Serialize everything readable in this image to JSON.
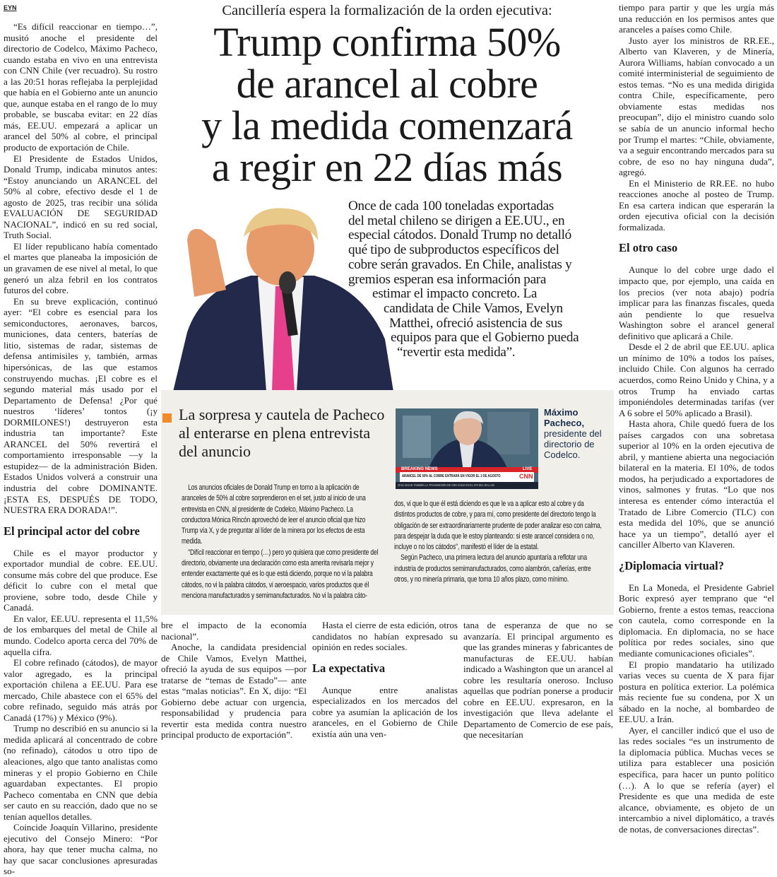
{
  "section_tag": "EYN",
  "kicker": "Cancillería espera la formalización de la orden ejecutiva:",
  "headline": [
    "Trump confirma 50%",
    "de arancel al cobre",
    "y la medida comenzará",
    "a regir en 22 días más"
  ],
  "deck": [
    "Once de cada 100 toneladas exportadas",
    "del metal chileno se dirigen a EE.UU., en",
    "especial cátodos. Donald Trump no detalló",
    "qué tipo de subproductos específicos del",
    "cobre serán gravados. En Chile, analistas y",
    "gremios esperan esa información para",
    "estimar el impacto concreto. La",
    "candidata de Chile Vamos, Evelyn",
    "Matthei, ofreció asistencia de sus",
    "equipos para que el Gobierno pueda",
    "“revertir esta medida”."
  ],
  "left_column": [
    {
      "t": "p",
      "text": "“Es difícil reaccionar en tiempo…”, musitó anoche el presidente del directorio de Codelco, Máximo Pacheco, cuando estaba en vivo en una entrevista con CNN Chile (ver recuadro). Su rostro a las 20:51 horas reflejaba la perplejidad que había en el Gobierno ante un anuncio que, aunque estaba en el rango de lo muy probable, se buscaba evitar: en 22 días más, EE.UU. empezará a aplicar un arancel del 50% al cobre, el principal producto de exportación de Chile."
    },
    {
      "t": "p",
      "text": "El Presidente de Estados Unidos, Donald Trump, indicaba minutos antes: “Estoy anunciando un ARANCEL del 50% al cobre, efectivo desde el 1 de agosto de 2025, tras recibir una sólida EVALUACIÓN DE SEGURIDAD NACIONAL”, indicó en su red social, Truth Social."
    },
    {
      "t": "p",
      "text": "El líder republicano había comentado el martes que planeaba la imposición de un gravamen de ese nivel al metal, lo que generó un alza febril en los contratos futuros del cobre."
    },
    {
      "t": "p",
      "text": "En su breve explicación, continuó ayer: “El cobre es esencial para los semiconductores, aeronaves, barcos, municiones, data centers, baterías de litio, sistemas de radar, sistemas de defensa antimisiles y, también, armas hipersónicas, de las que estamos construyendo muchas. ¡El cobre es el segundo material más usado por el Departamento de Defensa! ¿Por qué nuestros ‘líderes’ tontos (¡y DORMILONES!) destruyeron esta industria tan importante? Este ARANCEL del 50% revertirá el comportamiento irresponsable —y la estupidez— de la administración Biden. Estados Unidos volverá a construir una industria del cobre DOMINANTE. ¡ESTA ES, DESPUÉS DE TODO, NUESTRA ERA DORADA!”."
    },
    {
      "t": "h",
      "text": "El principal actor del cobre"
    },
    {
      "t": "p",
      "text": "Chile es el mayor productor y exportador mundial de cobre. EE.UU. consume más cobre del que produce. Ese déficit lo cubre con el metal que proviene, sobre todo, desde Chile y Canadá."
    },
    {
      "t": "p",
      "text": "En valor, EE.UU. representa el 11,5% de los embarques del metal de Chile al mundo. Codelco aporta cerca del 70% de aquella cifra."
    },
    {
      "t": "p",
      "text": "El cobre refinado (cátodos), de mayor valor agregado, es la principal exportación chilena a EE.UU. Para ese mercado, Chile abastece con el 65% del cobre refinado, seguido más atrás por Canadá (17%) y México (9%)."
    },
    {
      "t": "p",
      "text": "Trump no describió en su anuncio si la medida aplicará al concentrado de cobre (no refinado), cátodos u otro tipo de aleaciones, algo que tanto analistas como mineras y el propio Gobierno en Chile aguardaban expectantes. El propio Pacheco comentaba en CNN que debía ser cauto en su reacción, dado que no se tenían aquellos detalles."
    },
    {
      "t": "p",
      "text": "Coincide Joaquín Villarino, presidente ejecutivo del Consejo Minero: “Por ahora, hay que tener mucha calma, no hay que sacar conclusiones apresuradas so-"
    }
  ],
  "right_column": [
    {
      "t": "c",
      "text": "tiempo para partir y que les urgía más una reducción en los permisos antes que aranceles a países como Chile."
    },
    {
      "t": "p",
      "text": "Justo ayer los ministros de RR.EE., Alberto van Klaveren, y de Minería, Aurora Williams, habían convocado a un comité interministerial de seguimiento de estos temas. “No es una medida dirigida contra Chile, específicamente, pero obviamente estas medidas nos preocupan”, dijo el ministro cuando solo se sabía de un anuncio informal hecho por Trump el martes: “Chile, obviamente, va a seguir encontrando mercados para su cobre, de eso no hay ninguna duda”, agregó."
    },
    {
      "t": "p",
      "text": "En el Ministerio de RR.EE. no hubo reacciones anoche al posteo de Trump. En esa cartera indican que esperarán la orden ejecutiva oficial con la decisión formalizada."
    },
    {
      "t": "h",
      "text": "El otro caso"
    },
    {
      "t": "p",
      "text": "Aunque lo del cobre urge dado el impacto que, por ejemplo, una caída en los precios (ver nota abajo) podría implicar para las finanzas fiscales, queda aún pendiente lo que resuelva Washington sobre el arancel general definitivo que aplicará a Chile."
    },
    {
      "t": "p",
      "text": "Desde el 2 de abril que EE.UU. aplica un mínimo de 10% a todos los países, incluido Chile. Con algunos ha cerrado acuerdos, como Reino Unido y China, y a otros Trump ha enviado cartas imponiéndoles determinadas tarifas (ver A 6 sobre el 50% aplicado a Brasil)."
    },
    {
      "t": "p",
      "text": "Hasta ahora, Chile quedó fuera de los países cargados con una sobretasa superior al 10% en la orden ejecutiva de abril, y mantiene abierta una negociación bilateral en la materia. El 10%, de todos modos, ha perjudicado a exportadores de vinos, salmones y frutas. “Lo que nos interesa es entender cómo interactúa el Tratado de Libre Comercio (TLC) con esta medida del 10%, que se anunció hace ya un tiempo”, detalló ayer el canciller Alberto van Klaveren."
    },
    {
      "t": "h",
      "text": "¿Diplomacia virtual?"
    },
    {
      "t": "p",
      "text": "En La Moneda, el Presidente Gabriel Boric expresó ayer temprano que “el Gobierno, frente a estos temas, reacciona con cautela, como corresponde en la diplomacia. En diplomacia, no se hace política por redes sociales, sino que mediante comunicaciones oficiales”."
    },
    {
      "t": "p",
      "text": "El propio mandatario ha utilizado varias veces su cuenta de X para fijar postura en política exterior. La polémica más reciente fue su condena, por X un sábado en la noche, al bombardeo de EE.UU. a Irán."
    },
    {
      "t": "p",
      "text": "Ayer, el canciller indicó que el uso de las redes sociales “es un instrumento de la diplomacia pública. Muchas veces se utiliza para establecer una posición específica, para hacer un punto político (…). A lo que se refería (ayer) el Presidente es que una medida de este alcance, obviamente, es objeto de un intercambio a nivel diplomático, a través de notas, de conversaciones directas”."
    }
  ],
  "bottom_col1": [
    {
      "t": "c",
      "text": "bre el impacto de la economía nacional”."
    },
    {
      "t": "p",
      "text": "Anoche, la candidata presidencial de Chile Vamos, Evelyn Matthei, ofreció la ayuda de sus equipos —por tratarse de “temas de Estado”— ante estas “malas noticias”. En X, dijo: “El Gobierno debe actuar con urgencia, responsabilidad y prudencia para revertir esta medida contra nuestro principal producto de exportación”."
    }
  ],
  "bottom_col2": [
    {
      "t": "p",
      "text": "Hasta el cierre de esta edición, otros candidatos no habían expresado su opinión en redes sociales."
    },
    {
      "t": "h",
      "text": "La expectativa"
    },
    {
      "t": "p",
      "text": "Aunque entre analistas especializados en los mercados del cobre ya asumían la aplicación de los aranceles, en el Gobierno de Chile existía aún una ven-"
    }
  ],
  "bottom_col3": [
    {
      "t": "c",
      "text": "tana de esperanza de que no se avanzaría. El principal argumento es que las grandes mineras y fabricantes de manufacturas de EE.UU. habían indicado a Washington que un arancel al cobre les resultaría oneroso. Incluso aquellas que podrían ponerse a producir cobre en EE.UU. expresaron, en la investigación que lleva adelante el Departamento de Comercio de ese país, que necesitarían"
    }
  ],
  "box": {
    "accent_color": "#f08a2a",
    "title": "La sorpresa y cautela de Pacheco al enterarse en plena entrevista del anuncio",
    "caption_name": "Máximo Pacheco,",
    "caption_text": "presidente del directorio de Codelco.",
    "tv": {
      "breaking": "BREAKING NEWS",
      "live": "LIVE",
      "headline": "ARANCEL DE 50% AL COBRE ENTRARÁ EN VIGOR EL 1 DE AGOSTO",
      "logo": "CNN",
      "ticker": "20:51  SIGUE TAMBIÉN LA TRANSMISIÓN DE CNN CHILE EN EL 570 DEL DIAL AM"
    },
    "col1": [
      {
        "t": "p",
        "text": "Los anuncios oficiales de Donald Trump en torno a la aplicación de aranceles de 50% al cobre sorprendieron en el set, justo al inicio de una entrevista en CNN, al presidente de Codelco, Máximo Pacheco. La conductora Mónica Rincón aprovechó de leer el anuncio oficial que hizo Trump vía X, y de preguntar al líder de la minera por los efectos de esta medida."
      },
      {
        "t": "p",
        "text": "\"Difícil reaccionar en tiempo (…) pero yo quisiera que como presidente del directorio, obviamente una declaración como esta amerita revisarla mejor y entender exactamente qué es lo que está diciendo, porque no vi la palabra cátodos, no vi la palabra cátodos, vi aeroespacio, varios productos que él menciona manufacturados y semimanufacturados. No vi la palabra cáto-"
      }
    ],
    "col2": [
      {
        "t": "c",
        "text": "dos, vi que lo que él está diciendo es que le va a aplicar esto al cobre y da distintos productos de cobre, y para mí, como presidente del directorio tengo la obligación de ser extraordinariamente prudente de poder analizar eso con calma, para despejar la duda que le estoy planteando: si este arancel considera o no, incluye o no los cátodos\", manifestó el líder de la estatal."
      },
      {
        "t": "p",
        "text": "Según Pacheco, una primera lectura del anuncio apuntaría a reflotar una industria de productos semimanufacturados, como alambrón, cañerías, entre otros, y no minería primaria, que toma 10 años plazo, como mínimo."
      }
    ]
  }
}
